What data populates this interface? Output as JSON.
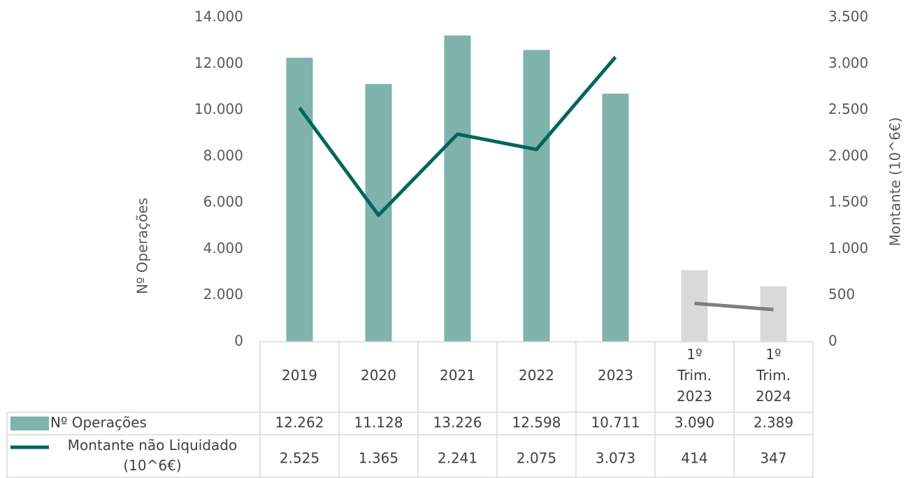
{
  "chart_data": {
    "type": "bar_line_table",
    "categories": [
      "2019",
      "2020",
      "2021",
      "2022",
      "2023",
      "1º Trim. 2023",
      "1º Trim. 2024"
    ],
    "y_label": "Nº Operações",
    "y2_label": "Montante (10^6€)",
    "ylim": [
      0,
      14000
    ],
    "yticks": [
      0,
      {
        "value": 2000,
        "label": "2.000"
      },
      {
        "value": 4000,
        "label": "4.000"
      },
      {
        "value": 6000,
        "label": "6.000"
      },
      {
        "value": 8000,
        "label": "8.000"
      },
      {
        "value": 10000,
        "label": "10.000"
      },
      {
        "value": 12000,
        "label": "12.000"
      },
      {
        "value": 14000,
        "label": "14.000"
      }
    ],
    "y2lim": [
      0,
      3500
    ],
    "y2ticks": [
      0,
      500,
      {
        "value": 1000,
        "label": "1.000"
      },
      {
        "value": 1500,
        "label": "1.500"
      },
      {
        "value": 2000,
        "label": "2.000"
      },
      {
        "value": 2500,
        "label": "2.500"
      },
      {
        "value": 3000,
        "label": "3.000"
      },
      {
        "value": 3500,
        "label": "3.500"
      }
    ],
    "series": [
      {
        "name": "Nº Operações",
        "type": "bar",
        "color": "#7fb3ac",
        "colors": [
          "#7fb3ac",
          "#7fb3ac",
          "#7fb3ac",
          "#7fb3ac",
          "#7fb3ac",
          "#d9d9d9",
          "#d9d9d9"
        ],
        "values": [
          12262,
          11128,
          13226,
          12598,
          10711,
          3090,
          2389
        ],
        "value_labels": [
          "12.262",
          "11.128",
          "13.226",
          "12.598",
          "10.711",
          "3.090",
          "2.389"
        ]
      },
      {
        "name": "Montante não Liquidado (10^6€)",
        "type": "line",
        "axis": "y2",
        "color": "#00665e",
        "colors": [
          "#00665e",
          "#00665e",
          "#00665e",
          "#00665e",
          "#00665e",
          "#7f7f7f",
          "#7f7f7f"
        ],
        "values": [
          2525,
          1365,
          2241,
          2075,
          3073,
          414,
          347
        ],
        "value_labels": [
          "2.525",
          "1.365",
          "2.241",
          "2.075",
          "3.073",
          "414",
          "347"
        ]
      }
    ]
  }
}
